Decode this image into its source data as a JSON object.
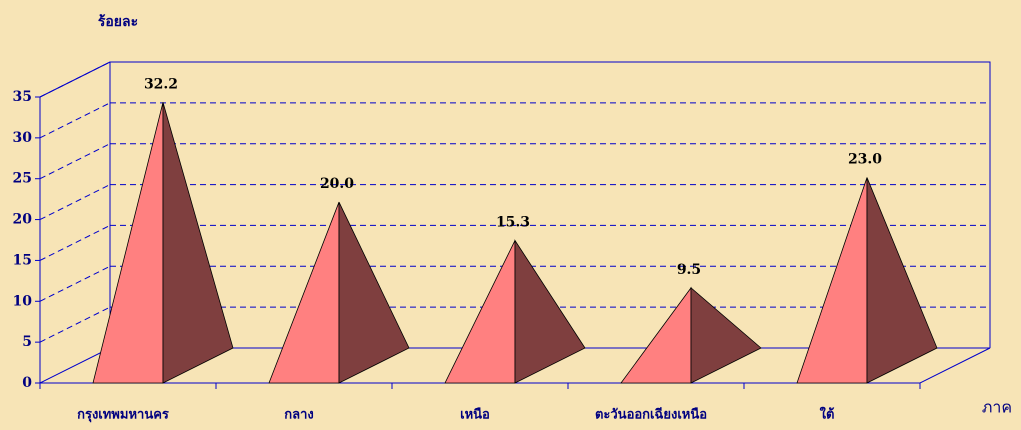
{
  "chart_data": {
    "type": "pyramid",
    "ylabel": "ร้อยละ",
    "xlabel": "ภาค",
    "categories": [
      "กรุงเทพมหานคร",
      "กลาง",
      "เหนือ",
      "ตะวันออกเฉียงเหนือ",
      "ใต้"
    ],
    "values": [
      32.2,
      20.0,
      15.3,
      9.5,
      23.0
    ],
    "value_labels": [
      "32.2",
      "20.0",
      "15.3",
      "9.5",
      "23.0"
    ],
    "ylim": [
      0,
      35
    ],
    "yticks": [
      0,
      5,
      10,
      15,
      20,
      25,
      30,
      35
    ],
    "colors": [
      "#ff8080",
      "#7f3f3f"
    ],
    "grid": true
  }
}
